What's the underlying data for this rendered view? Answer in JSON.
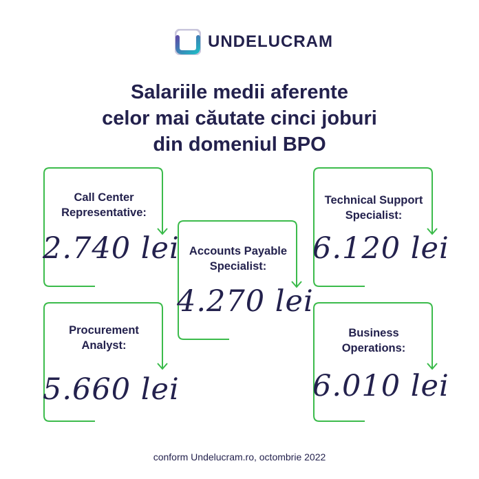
{
  "brand": {
    "name": "UNDELUCRAM"
  },
  "colors": {
    "navy": "#23214d",
    "green": "#3bbb4b",
    "teal": "#1fb8c4",
    "purple": "#5b4fa8"
  },
  "headline": {
    "line1": "Salariile medii aferente",
    "line2": "celor mai căutate cinci joburi",
    "line3": "din domeniul BPO"
  },
  "jobs": [
    {
      "title_line1": "Call Center",
      "title_line2": "Representative:",
      "salary": "2.740 lei"
    },
    {
      "title_line1": "Accounts Payable",
      "title_line2": "Specialist:",
      "salary": "4.270 lei"
    },
    {
      "title_line1": "Technical Support",
      "title_line2": "Specialist:",
      "salary": "6.120 lei"
    },
    {
      "title_line1": "Procurement",
      "title_line2": "Analyst:",
      "salary": "5.660 lei"
    },
    {
      "title_line1": "Business",
      "title_line2": "Operations:",
      "salary": "6.010 lei"
    }
  ],
  "footer": {
    "source": "conform Undelucram.ro, octombrie 2022"
  }
}
